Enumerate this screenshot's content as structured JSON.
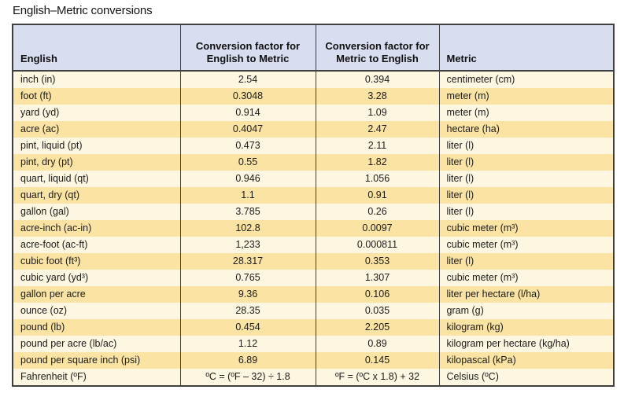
{
  "title": "English–Metric conversions",
  "table": {
    "columns": [
      {
        "label": "English"
      },
      {
        "label": "Conversion factor for English to Metric"
      },
      {
        "label": "Conversion factor for Metric to English"
      },
      {
        "label": "Metric"
      }
    ],
    "rows": [
      [
        "inch (in)",
        "2.54",
        "0.394",
        "centimeter (cm)"
      ],
      [
        "foot (ft)",
        "0.3048",
        "3.28",
        "meter (m)"
      ],
      [
        "yard (yd)",
        "0.914",
        "1.09",
        "meter (m)"
      ],
      [
        "acre (ac)",
        "0.4047",
        "2.47",
        "hectare (ha)"
      ],
      [
        "pint, liquid (pt)",
        "0.473",
        "2.11",
        "liter (l)"
      ],
      [
        "pint, dry (pt)",
        "0.55",
        "1.82",
        "liter (l)"
      ],
      [
        "quart, liquid (qt)",
        "0.946",
        "1.056",
        "liter (l)"
      ],
      [
        "quart, dry (qt)",
        "1.1",
        "0.91",
        "liter (l)"
      ],
      [
        "gallon (gal)",
        "3.785",
        "0.26",
        "liter (l)"
      ],
      [
        "acre-inch (ac-in)",
        "102.8",
        "0.0097",
        "cubic meter (m³)"
      ],
      [
        "acre-foot (ac-ft)",
        "1,233",
        "0.000811",
        "cubic meter (m³)"
      ],
      [
        "cubic foot (ft³)",
        "28.317",
        "0.353",
        "liter (l)"
      ],
      [
        "cubic yard (yd³)",
        "0.765",
        "1.307",
        "cubic meter (m³)"
      ],
      [
        "gallon per acre",
        "9.36",
        "0.106",
        "liter per hectare (l/ha)"
      ],
      [
        "ounce (oz)",
        "28.35",
        "0.035",
        "gram (g)"
      ],
      [
        "pound (lb)",
        "0.454",
        "2.205",
        "kilogram (kg)"
      ],
      [
        "pound per acre (lb/ac)",
        "1.12",
        "0.89",
        "kilogram per hectare (kg/ha)"
      ],
      [
        "pound per square inch (psi)",
        "6.89",
        "0.145",
        "kilopascal (kPa)"
      ],
      [
        "Fahrenheit (ºF)",
        "ºC = (ºF – 32) ÷ 1.8",
        "ºF = (ºC x 1.8) + 32",
        "Celsius (ºC)"
      ]
    ],
    "colors": {
      "header_bg": "#d9ddf0",
      "row_cream": "#fdf6e0",
      "row_yellow": "#fbe3a3",
      "border": "#3f3f3f"
    }
  }
}
